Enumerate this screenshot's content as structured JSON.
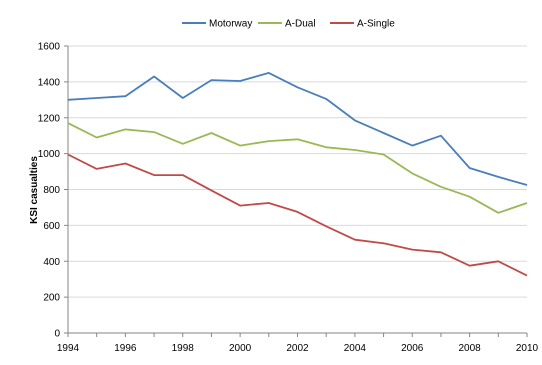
{
  "chart_data": {
    "type": "line",
    "title": "",
    "xlabel": "",
    "ylabel": "KSI casualties",
    "x": [
      1994,
      1995,
      1996,
      1997,
      1998,
      1999,
      2000,
      2001,
      2002,
      2003,
      2004,
      2005,
      2006,
      2007,
      2008,
      2009,
      2010
    ],
    "x_ticks": [
      "1994",
      "1996",
      "1998",
      "2000",
      "2002",
      "2004",
      "2006",
      "2008",
      "2010"
    ],
    "xlim": [
      1994,
      2010
    ],
    "y_ticks": [
      "0",
      "200",
      "400",
      "600",
      "800",
      "1000",
      "1200",
      "1400",
      "1600"
    ],
    "ylim": [
      0,
      1600
    ],
    "grid": true,
    "legend_position": "top",
    "series": [
      {
        "name": "Motorway",
        "color": "#4a7ebb",
        "values": [
          1300,
          1310,
          1320,
          1430,
          1310,
          1410,
          1405,
          1450,
          1370,
          1305,
          1185,
          1115,
          1045,
          1100,
          920,
          870,
          825
        ]
      },
      {
        "name": "A-Dual",
        "color": "#98b954",
        "values": [
          1170,
          1090,
          1135,
          1120,
          1055,
          1115,
          1045,
          1070,
          1080,
          1035,
          1020,
          995,
          890,
          815,
          760,
          670,
          725
        ]
      },
      {
        "name": "A-Single",
        "color": "#be4b48",
        "values": [
          995,
          915,
          945,
          880,
          880,
          795,
          710,
          725,
          675,
          595,
          520,
          500,
          465,
          450,
          375,
          400,
          320
        ]
      }
    ]
  }
}
